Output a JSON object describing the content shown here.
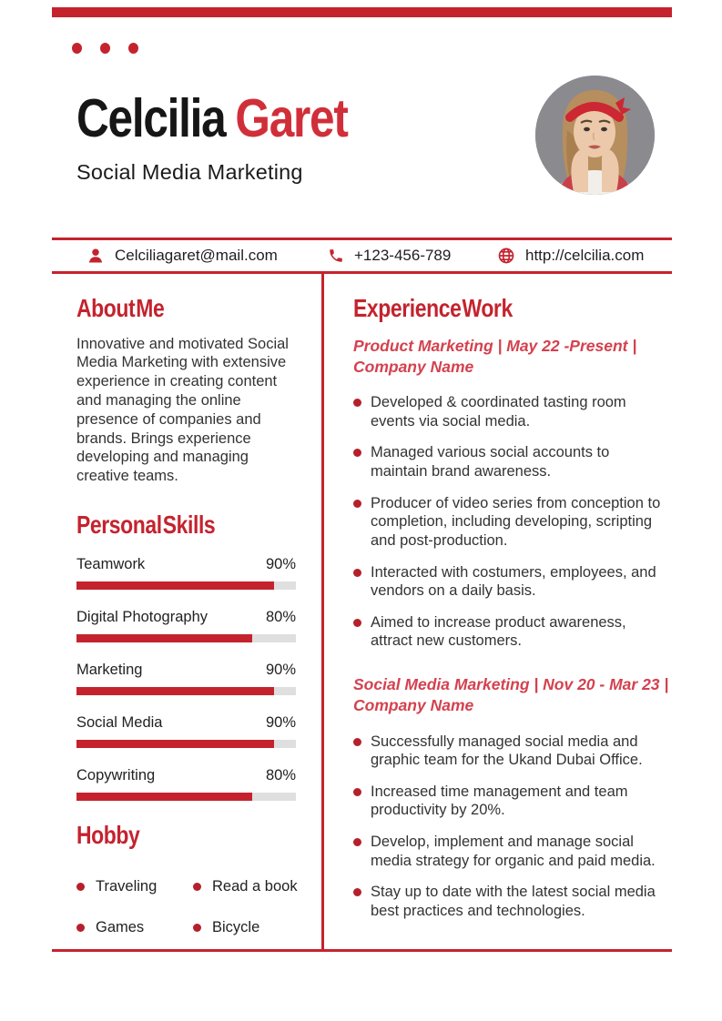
{
  "theme": {
    "accent": "#c4232e",
    "name_red": "#d02f39",
    "job_heading_red": "#d4414e",
    "bullet_red": "#b5202b",
    "bar_track": "#dfdfdf",
    "photo_bg": "#8b8a8f"
  },
  "header": {
    "name_first": "Celcilia",
    "name_last": "Garet",
    "subtitle": "Social Media Marketing"
  },
  "contact": {
    "email": "Celciliagaret@mail.com",
    "phone": "+123-456-789",
    "website": "http://celcilia.com"
  },
  "about": {
    "title": "About Me",
    "text": "Innovative and motivated Social Media Marketing with extensive experience in creating content and managing the online presence of companies and brands. Brings experience developing and managing creative teams."
  },
  "skills": {
    "title": "Personal Skills",
    "items": [
      {
        "label": "Teamwork",
        "percent": "90%"
      },
      {
        "label": "Digital Photography",
        "percent": "80%"
      },
      {
        "label": "Marketing",
        "percent": "90%"
      },
      {
        "label": "Social Media",
        "percent": "90%"
      },
      {
        "label": "Copywriting",
        "percent": "80%"
      }
    ]
  },
  "hobby": {
    "title": "Hobby",
    "items": [
      {
        "label": "Traveling"
      },
      {
        "label": "Read a book"
      },
      {
        "label": "Games"
      },
      {
        "label": "Bicycle"
      }
    ]
  },
  "experience": {
    "title": "Experience Work",
    "jobs": [
      {
        "heading_line1": "Product Marketing | May 22 -Present |",
        "heading_line2": "Company Name",
        "bullets": [
          {
            "text": "Developed & coordinated tasting room events via social media."
          },
          {
            "text": "Managed various social accounts to maintain brand awareness."
          },
          {
            "text": "Producer of video series from conception to completion, including developing, scripting and post-production."
          },
          {
            "text": "Interacted with costumers, employees, and vendors on a daily basis."
          },
          {
            "text": "Aimed to increase product awareness, attract new customers."
          }
        ]
      },
      {
        "heading_line1": "Social Media Marketing | Nov 20 - Mar 23 |",
        "heading_line2": "Company Name",
        "bullets": [
          {
            "text": "Successfully managed social media and graphic team for the Ukand Dubai Office."
          },
          {
            "text": "Increased time management and team productivity by 20%."
          },
          {
            "text": "Develop, implement and manage social media strategy for organic and paid media."
          },
          {
            "text": "Stay up to date with the latest social media best practices and technologies."
          }
        ]
      }
    ]
  }
}
